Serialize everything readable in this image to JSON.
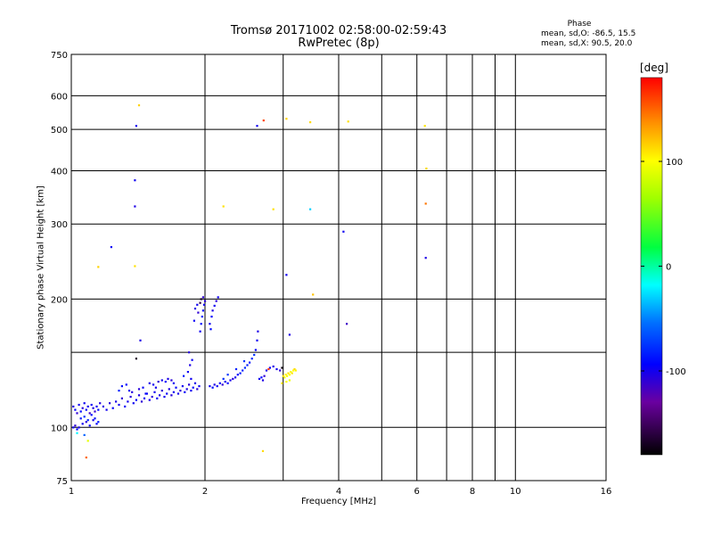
{
  "header": {
    "title": "Tromsø 20171002 02:58:00-02:59:43",
    "subtitle": "RwPretec (8p)"
  },
  "phase_info": {
    "heading": "Phase",
    "line_o": "mean, sd,O: -86.5, 15.5",
    "line_x": "mean, sd,X:  90.5, 20.0"
  },
  "colorbar": {
    "unit": "[deg]",
    "range": [
      -180,
      180
    ],
    "ticks": [
      100,
      0,
      -100
    ]
  },
  "chart_data": {
    "type": "scatter",
    "xlabel": "Frequency [MHz]",
    "ylabel": "Stationary phase Virtual Height [km]",
    "x_scale": "log",
    "y_scale": "log",
    "xlim": [
      1,
      16
    ],
    "ylim": [
      75,
      750
    ],
    "x_ticks": [
      1,
      2,
      4,
      6,
      8,
      10,
      16
    ],
    "x_minor_lines": [
      3,
      5,
      7,
      9
    ],
    "y_ticks": [
      75,
      100,
      200,
      300,
      400,
      500,
      600,
      750
    ],
    "y_minor_lines": [
      150
    ],
    "grid": true,
    "colors": {
      "grid": "#000000"
    },
    "points": [
      [
        1.01,
        112,
        -105
      ],
      [
        1.02,
        110,
        -95
      ],
      [
        1.03,
        108,
        -110
      ],
      [
        1.04,
        113,
        -100
      ],
      [
        1.05,
        109,
        -92
      ],
      [
        1.06,
        111,
        -108
      ],
      [
        1.07,
        114,
        -100
      ],
      [
        1.08,
        110,
        -96
      ],
      [
        1.09,
        112,
        -102
      ],
      [
        1.1,
        108,
        -115
      ],
      [
        1.11,
        113,
        -99
      ],
      [
        1.12,
        111,
        -104
      ],
      [
        1.13,
        109,
        -112
      ],
      [
        1.14,
        112,
        -100
      ],
      [
        1.15,
        110,
        -93
      ],
      [
        1.16,
        114,
        -106
      ],
      [
        1.01,
        100,
        -100
      ],
      [
        1.02,
        101,
        -110
      ],
      [
        1.03,
        99,
        -95
      ],
      [
        1.04,
        100,
        -102
      ],
      [
        1.06,
        102,
        -100
      ],
      [
        1.08,
        103,
        -108
      ],
      [
        1.1,
        101,
        -97
      ],
      [
        1.12,
        104,
        -100
      ],
      [
        1.14,
        102,
        -95
      ],
      [
        1.05,
        105,
        -88
      ],
      [
        1.07,
        106,
        -80
      ],
      [
        1.09,
        104,
        -85
      ],
      [
        1.11,
        107,
        -92
      ],
      [
        1.13,
        105,
        -90
      ],
      [
        1.15,
        103,
        -86
      ],
      [
        1.18,
        112,
        -105
      ],
      [
        1.2,
        110,
        -100
      ],
      [
        1.22,
        114,
        -108
      ],
      [
        1.24,
        111,
        -96
      ],
      [
        1.26,
        115,
        -104
      ],
      [
        1.28,
        113,
        -100
      ],
      [
        1.3,
        117,
        -110
      ],
      [
        1.32,
        112,
        -98
      ],
      [
        1.34,
        115,
        -102
      ],
      [
        1.36,
        118,
        -107
      ],
      [
        1.38,
        114,
        -100
      ],
      [
        1.4,
        116,
        -95
      ],
      [
        1.42,
        119,
        -105
      ],
      [
        1.44,
        115,
        -110
      ],
      [
        1.46,
        117,
        -100
      ],
      [
        1.48,
        120,
        -98
      ],
      [
        1.5,
        116,
        -103
      ],
      [
        1.52,
        118,
        -108
      ],
      [
        1.54,
        121,
        -100
      ],
      [
        1.56,
        117,
        -96
      ],
      [
        1.58,
        119,
        -105
      ],
      [
        1.6,
        122,
        -110
      ],
      [
        1.62,
        118,
        -100
      ],
      [
        1.64,
        120,
        -98
      ],
      [
        1.66,
        123,
        -104
      ],
      [
        1.68,
        119,
        -108
      ],
      [
        1.7,
        121,
        -100
      ],
      [
        1.72,
        124,
        -96
      ],
      [
        1.74,
        120,
        -102
      ],
      [
        1.76,
        122,
        -110
      ],
      [
        1.78,
        125,
        -100
      ],
      [
        1.8,
        121,
        -97
      ],
      [
        1.82,
        123,
        -104
      ],
      [
        1.84,
        126,
        -108
      ],
      [
        1.86,
        122,
        -100
      ],
      [
        1.88,
        124,
        -95
      ],
      [
        1.9,
        127,
        -103
      ],
      [
        1.92,
        123,
        -109
      ],
      [
        1.94,
        125,
        -100
      ],
      [
        1.35,
        122,
        -100
      ],
      [
        1.37,
        121,
        -106
      ],
      [
        1.45,
        124,
        -98
      ],
      [
        1.5,
        127,
        -104
      ],
      [
        1.53,
        126,
        -100
      ],
      [
        1.57,
        128,
        -110
      ],
      [
        1.6,
        129,
        -100
      ],
      [
        1.63,
        128,
        -96
      ],
      [
        1.65,
        130,
        -104
      ],
      [
        1.68,
        129,
        -108
      ],
      [
        1.7,
        127,
        -100
      ],
      [
        1.55,
        124,
        -102
      ],
      [
        1.47,
        120,
        -96
      ],
      [
        1.42,
        123,
        -108
      ],
      [
        1.3,
        125,
        -90
      ],
      [
        1.28,
        122,
        -84
      ],
      [
        1.33,
        126,
        -95
      ],
      [
        1.83,
        135,
        -100
      ],
      [
        1.85,
        140,
        -104
      ],
      [
        1.87,
        144,
        -98
      ],
      [
        1.84,
        150,
        -108
      ],
      [
        1.86,
        130,
        -100
      ],
      [
        1.95,
        168,
        -100
      ],
      [
        1.96,
        175,
        -90
      ],
      [
        1.97,
        182,
        -86
      ],
      [
        1.98,
        188,
        -96
      ],
      [
        1.99,
        194,
        -100
      ],
      [
        2.0,
        198,
        -108
      ],
      [
        1.96,
        200,
        -170
      ],
      [
        1.95,
        196,
        -160
      ],
      [
        1.98,
        202,
        -110
      ],
      [
        1.9,
        190,
        -105
      ],
      [
        1.92,
        194,
        -100
      ],
      [
        1.93,
        186,
        -110
      ],
      [
        1.89,
        178,
        -98
      ],
      [
        2.05,
        175,
        -100
      ],
      [
        2.07,
        182,
        -96
      ],
      [
        2.08,
        188,
        -104
      ],
      [
        2.1,
        193,
        -100
      ],
      [
        2.12,
        198,
        -108
      ],
      [
        2.14,
        202,
        -100
      ],
      [
        2.06,
        170,
        -92
      ],
      [
        2.05,
        125,
        -100
      ],
      [
        2.08,
        124,
        -92
      ],
      [
        2.1,
        126,
        -104
      ],
      [
        2.13,
        125,
        -100
      ],
      [
        2.16,
        127,
        -96
      ],
      [
        2.19,
        126,
        -110
      ],
      [
        2.22,
        128,
        -100
      ],
      [
        2.25,
        127,
        -94
      ],
      [
        2.28,
        129,
        -102
      ],
      [
        2.31,
        130,
        -108
      ],
      [
        2.34,
        131,
        -100
      ],
      [
        2.37,
        133,
        -96
      ],
      [
        2.4,
        134,
        -88
      ],
      [
        2.43,
        136,
        -84
      ],
      [
        2.46,
        138,
        -80
      ],
      [
        2.49,
        140,
        -86
      ],
      [
        2.52,
        142,
        -90
      ],
      [
        2.55,
        145,
        -84
      ],
      [
        2.58,
        148,
        -78
      ],
      [
        2.6,
        152,
        -96
      ],
      [
        2.62,
        160,
        -100
      ],
      [
        2.63,
        168,
        -104
      ],
      [
        2.2,
        130,
        -80
      ],
      [
        2.25,
        133,
        -78
      ],
      [
        2.35,
        137,
        -82
      ],
      [
        2.45,
        143,
        -76
      ],
      [
        2.65,
        130,
        -100
      ],
      [
        2.68,
        131,
        -92
      ],
      [
        2.7,
        129,
        -104
      ],
      [
        2.72,
        132,
        -110
      ],
      [
        2.75,
        136,
        -100
      ],
      [
        2.8,
        138,
        -96
      ],
      [
        2.85,
        139,
        -104
      ],
      [
        2.9,
        137,
        -100
      ],
      [
        2.95,
        136,
        -110
      ],
      [
        2.78,
        137,
        165
      ],
      [
        2.98,
        138,
        -175
      ],
      [
        3.0,
        132,
        110
      ],
      [
        3.02,
        131,
        95
      ],
      [
        3.04,
        133,
        105
      ],
      [
        3.06,
        132,
        98
      ],
      [
        3.08,
        134,
        110
      ],
      [
        3.1,
        133,
        102
      ],
      [
        3.12,
        135,
        96
      ],
      [
        3.14,
        134,
        108
      ],
      [
        3.16,
        136,
        100
      ],
      [
        3.18,
        137,
        112
      ],
      [
        3.2,
        136,
        104
      ],
      [
        3.05,
        128,
        100
      ],
      [
        3.1,
        129,
        95
      ],
      [
        2.98,
        127,
        108
      ],
      [
        1.08,
        85,
        150
      ],
      [
        1.09,
        93,
        90
      ],
      [
        1.03,
        97,
        -20
      ],
      [
        1.07,
        96,
        -60
      ],
      [
        1.15,
        238,
        115
      ],
      [
        1.39,
        239,
        110
      ],
      [
        1.42,
        570,
        115
      ],
      [
        2.2,
        330,
        110
      ],
      [
        2.85,
        325,
        110
      ],
      [
        3.05,
        530,
        115
      ],
      [
        3.45,
        520,
        112
      ],
      [
        4.2,
        522,
        110
      ],
      [
        6.25,
        510,
        108
      ],
      [
        6.3,
        405,
        112
      ],
      [
        6.28,
        335,
        145
      ],
      [
        2.7,
        88,
        112
      ],
      [
        3.5,
        205,
        120
      ],
      [
        1.4,
        510,
        -100
      ],
      [
        1.39,
        380,
        -100
      ],
      [
        1.39,
        330,
        -104
      ],
      [
        1.23,
        265,
        -98
      ],
      [
        1.43,
        160,
        -104
      ],
      [
        1.4,
        145,
        -170
      ],
      [
        1.79,
        132,
        -86
      ],
      [
        2.62,
        510,
        -100
      ],
      [
        2.71,
        525,
        160
      ],
      [
        3.05,
        228,
        -100
      ],
      [
        3.1,
        165,
        -105
      ],
      [
        4.1,
        288,
        -100
      ],
      [
        4.17,
        175,
        -115
      ],
      [
        6.28,
        250,
        -104
      ],
      [
        3.45,
        325,
        -30
      ]
    ]
  }
}
